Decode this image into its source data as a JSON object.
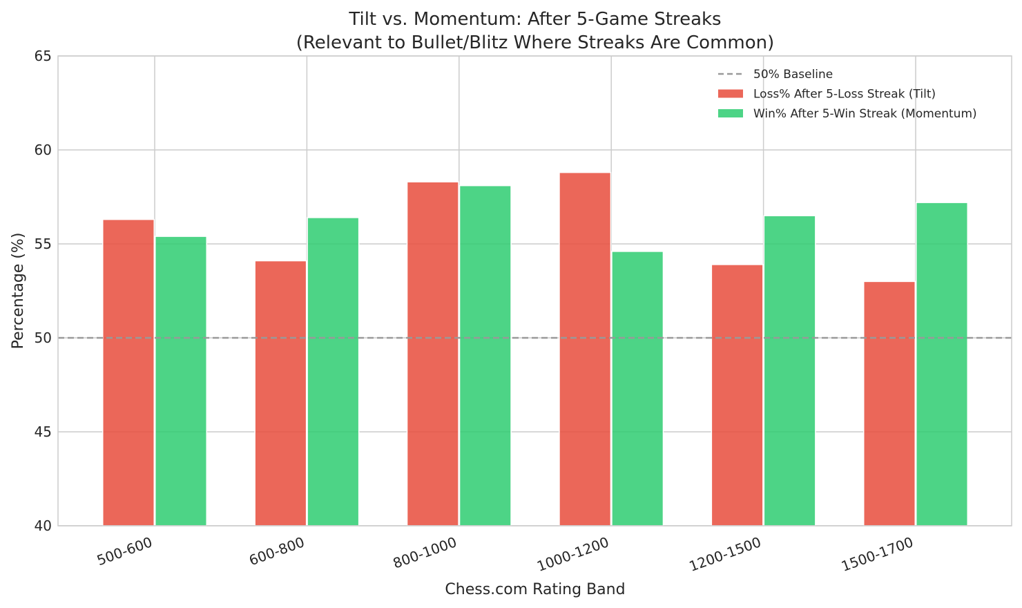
{
  "chart_data": {
    "type": "bar",
    "title": "Tilt vs. Momentum: After 5-Game Streaks",
    "subtitle": "(Relevant to Bullet/Blitz Where Streaks Are Common)",
    "xlabel": "Chess.com Rating Band",
    "ylabel": "Percentage (%)",
    "ylim": [
      40,
      65
    ],
    "yticks": [
      40,
      45,
      50,
      55,
      60,
      65
    ],
    "categories": [
      "500-600",
      "600-800",
      "800-1000",
      "1000-1200",
      "1200-1500",
      "1500-1700"
    ],
    "series": [
      {
        "name": "Loss% After 5-Loss Streak (Tilt)",
        "color": "#e74c3c",
        "values": [
          56.3,
          54.1,
          58.3,
          58.8,
          53.9,
          53.0
        ]
      },
      {
        "name": "Win% After 5-Win Streak (Momentum)",
        "color": "#2ecc71",
        "values": [
          55.4,
          56.4,
          58.1,
          54.6,
          56.5,
          57.2
        ]
      }
    ],
    "baseline": {
      "name": "50% Baseline",
      "value": 50,
      "color": "#999999",
      "style": "dashed"
    },
    "grid": true,
    "legend_position": "top-right"
  }
}
